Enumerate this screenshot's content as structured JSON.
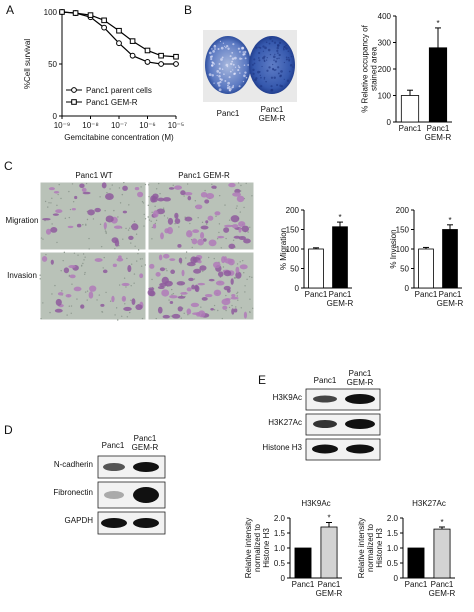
{
  "figure": {
    "panels": [
      "A",
      "B",
      "C",
      "D",
      "E"
    ],
    "b_photo_labels": [
      "Panc1",
      "Panc1 GEM-R"
    ],
    "c_columns": [
      "Panc1 WT",
      "Panc1 GEM-R"
    ],
    "c_rows": [
      "Migration",
      "Invasion"
    ],
    "d_columns": [
      "Panc1",
      "Panc1 GEM-R"
    ],
    "d_rows": [
      "N-cadherin",
      "Fibronectin",
      "GAPDH"
    ],
    "e_columns": [
      "Panc1",
      "Panc1 GEM-R"
    ],
    "e_rows": [
      "H3K9Ac",
      "H3K27Ac",
      "Histone H3"
    ]
  },
  "chart_data": [
    {
      "type": "line",
      "x_label": "Gemcitabine concentration (M)",
      "y_label": "%Cell survival",
      "xscale": "log",
      "xlim": [
        1e-09,
        1e-05
      ],
      "xticks": [
        {
          "value": 1e-09,
          "label": "10⁻⁹"
        },
        {
          "value": 1e-08,
          "label": "10⁻⁸"
        },
        {
          "value": 1e-07,
          "label": "10⁻⁷"
        },
        {
          "value": 1e-06,
          "label": "10⁻⁶"
        },
        {
          "value": 1e-05,
          "label": "10⁻⁵"
        }
      ],
      "ylim": [
        0,
        100
      ],
      "yticks": [
        0,
        50,
        100
      ],
      "x": [
        1e-09,
        3e-09,
        1e-08,
        3e-08,
        1e-07,
        3e-07,
        1e-06,
        3e-06,
        1e-05
      ],
      "series": [
        {
          "name": "Panc1 parent cells",
          "color": "#000000",
          "marker": "circle",
          "values": [
            100,
            99,
            95,
            85,
            70,
            58,
            52,
            50,
            50
          ]
        },
        {
          "name": "Panc1 GEM-R",
          "color": "#000000",
          "marker": "square",
          "values": [
            100,
            99,
            97,
            92,
            82,
            72,
            63,
            58,
            57
          ]
        }
      ]
    },
    {
      "type": "bar",
      "y_label": "% Relative occupancy of stained area",
      "categories": [
        "Panc1",
        "Panc1 GEM-R"
      ],
      "values": [
        100,
        280
      ],
      "errors": [
        20,
        75
      ],
      "colors": [
        "#ffffff",
        "#000000"
      ],
      "ylim": [
        0,
        400
      ],
      "yticks": [
        0,
        100,
        200,
        300,
        400
      ],
      "annotation": "*"
    },
    {
      "type": "bar",
      "y_label": "% Migration",
      "categories": [
        "Panc1",
        "Panc1 GEM-R"
      ],
      "values": [
        100,
        157
      ],
      "errors": [
        3,
        12
      ],
      "colors": [
        "#ffffff",
        "#000000"
      ],
      "ylim": [
        0,
        200
      ],
      "yticks": [
        0,
        50,
        100,
        150,
        200
      ],
      "annotation": "*"
    },
    {
      "type": "bar",
      "y_label": "% Invasion",
      "categories": [
        "Panc1",
        "Panc1 GEM-R"
      ],
      "values": [
        100,
        150
      ],
      "errors": [
        4,
        12
      ],
      "colors": [
        "#ffffff",
        "#000000"
      ],
      "ylim": [
        0,
        200
      ],
      "yticks": [
        0,
        50,
        100,
        150,
        200
      ],
      "annotation": "*"
    },
    {
      "type": "bar",
      "title": "H3K9Ac",
      "y_label": "Relative intensity normalized to Histone H3",
      "categories": [
        "Panc1",
        "Panc1 GEM-R"
      ],
      "values": [
        1.0,
        1.7
      ],
      "errors": [
        0,
        0.15
      ],
      "colors": [
        "#000000",
        "#d3d3d3"
      ],
      "ylim": [
        0,
        2
      ],
      "yticks": [
        0,
        0.5,
        {
          "value": 1,
          "label": "1.0"
        },
        1.5,
        {
          "value": 2,
          "label": "2.0"
        }
      ],
      "annotation": "*"
    },
    {
      "type": "bar",
      "title": "H3K27Ac",
      "y_label": "Relative intensity normalized to Histone H3",
      "categories": [
        "Panc1",
        "Panc1 GEM-R"
      ],
      "values": [
        1.0,
        1.63
      ],
      "errors": [
        0,
        0.07
      ],
      "colors": [
        "#000000",
        "#d3d3d3"
      ],
      "ylim": [
        0,
        2
      ],
      "yticks": [
        0,
        0.5,
        {
          "value": 1,
          "label": "1.0"
        },
        1.5,
        {
          "value": 2,
          "label": "2.0"
        }
      ],
      "annotation": "*"
    }
  ]
}
